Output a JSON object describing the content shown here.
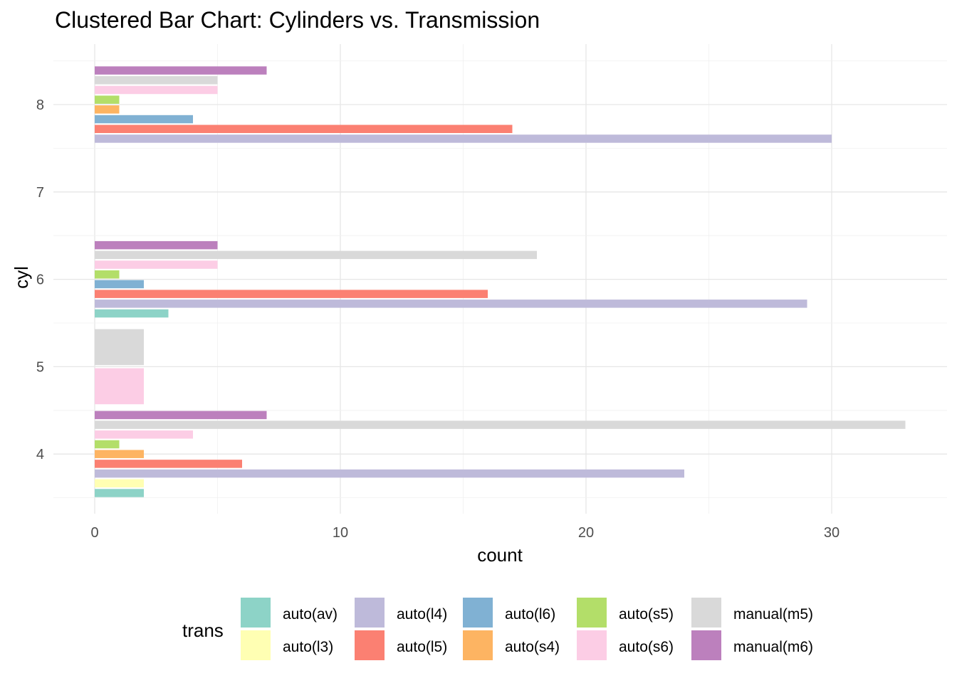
{
  "chart_data": {
    "type": "bar",
    "orientation": "horizontal",
    "title": "Clustered Bar Chart: Cylinders vs. Transmission",
    "xlabel": "count",
    "ylabel": "cyl",
    "xlim": [
      0,
      34
    ],
    "x_ticks": [
      0,
      10,
      20,
      30
    ],
    "categories": [
      "4",
      "5",
      "6",
      "7",
      "8"
    ],
    "legend_title": "trans",
    "legend_position": "bottom",
    "grid": true,
    "series": [
      {
        "name": "auto(av)",
        "color": "#8DD3C7",
        "values": [
          2,
          null,
          3,
          null,
          null
        ]
      },
      {
        "name": "auto(l3)",
        "color": "#FFFFB3",
        "values": [
          2,
          null,
          null,
          null,
          null
        ]
      },
      {
        "name": "auto(l4)",
        "color": "#BEBADA",
        "values": [
          24,
          null,
          29,
          null,
          30
        ]
      },
      {
        "name": "auto(l5)",
        "color": "#FB8072",
        "values": [
          6,
          null,
          16,
          null,
          17
        ]
      },
      {
        "name": "auto(l6)",
        "color": "#80B1D3",
        "values": [
          null,
          null,
          2,
          null,
          4
        ]
      },
      {
        "name": "auto(s4)",
        "color": "#FDB462",
        "values": [
          2,
          null,
          null,
          null,
          1
        ]
      },
      {
        "name": "auto(s5)",
        "color": "#B3DE69",
        "values": [
          1,
          null,
          1,
          null,
          1
        ]
      },
      {
        "name": "auto(s6)",
        "color": "#FCCDE5",
        "values": [
          4,
          2,
          5,
          null,
          5
        ]
      },
      {
        "name": "manual(m5)",
        "color": "#D9D9D9",
        "values": [
          33,
          2,
          18,
          null,
          5
        ]
      },
      {
        "name": "manual(m6)",
        "color": "#BC80BD",
        "values": [
          7,
          null,
          5,
          null,
          7
        ]
      }
    ]
  }
}
